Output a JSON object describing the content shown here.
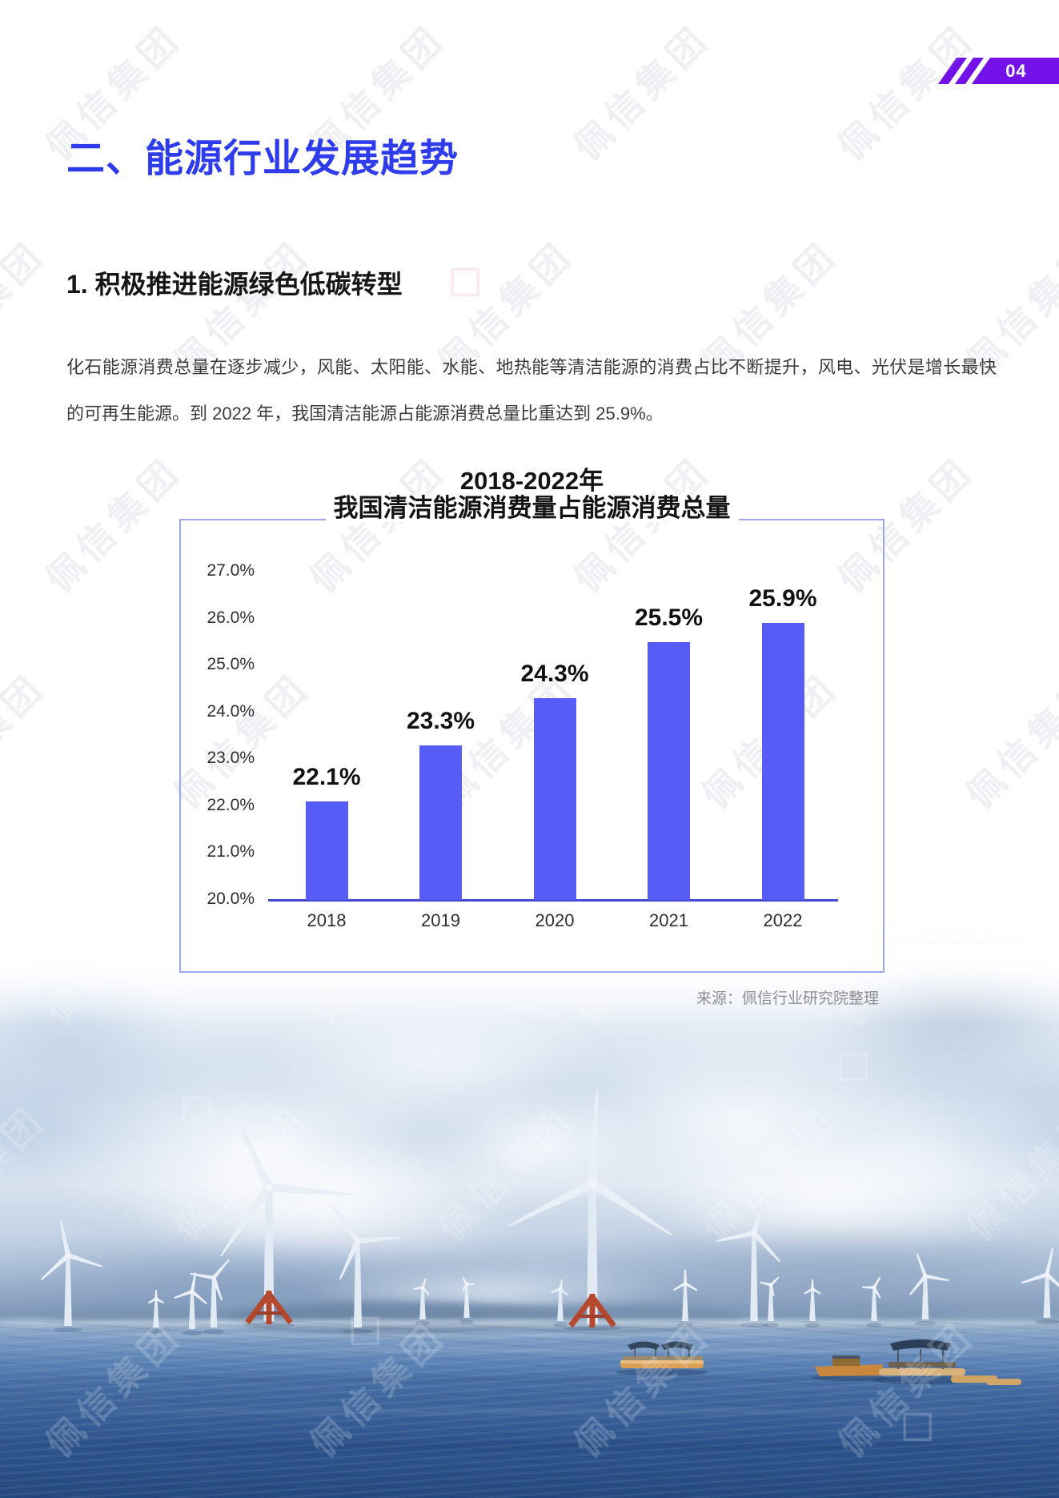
{
  "page": {
    "number": "04"
  },
  "section": {
    "heading": "二、能源行业发展趋势",
    "subheading": "1. 积极推进能源绿色低碳转型",
    "paragraph": "化石能源消费总量在逐步减少，风能、太阳能、水能、地热能等清洁能源的消费占比不断提升，风电、光伏是增长最快的可再生能源。到 2022 年，我国清洁能源占能源消费总量比重达到 25.9%。"
  },
  "chart_data": {
    "type": "bar",
    "title_line1": "2018-2022年",
    "title_line2": "我国清洁能源消费量占能源消费总量",
    "categories": [
      "2018",
      "2019",
      "2020",
      "2021",
      "2022"
    ],
    "values": [
      22.1,
      23.3,
      24.3,
      25.5,
      25.9
    ],
    "bar_labels": [
      "22.1%",
      "23.3%",
      "24.3%",
      "25.5%",
      "25.9%"
    ],
    "ylim": [
      20,
      27
    ],
    "ytick_labels": [
      "27.0%",
      "26.0%",
      "25.0%",
      "24.0%",
      "23.0%",
      "22.0%",
      "21.0%",
      "20.0%"
    ],
    "xlabel": "",
    "ylabel": "",
    "grid": false,
    "legend": "none",
    "bar_color": "#585CF6",
    "axis_color": "#4347D2"
  },
  "source": "来源：佩信行业研究院整理",
  "watermark": {
    "text": "佩信集团",
    "logo_glyph": "◇"
  },
  "colors": {
    "heading": "#2F3CEC",
    "badge": "#7311E9",
    "chart_border": "#A0A5F0"
  }
}
